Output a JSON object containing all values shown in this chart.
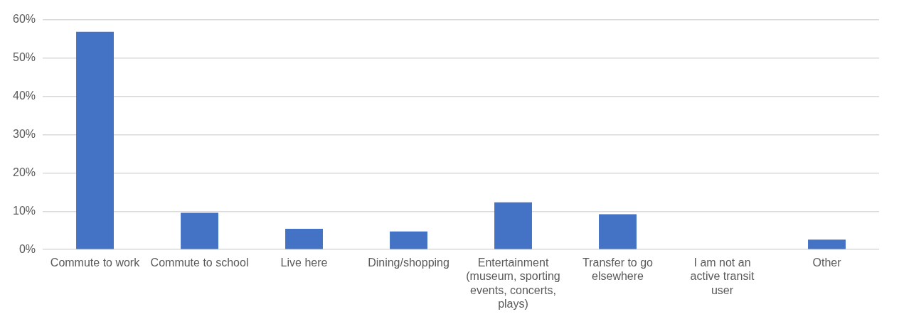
{
  "chart_data": {
    "type": "bar",
    "categories": [
      "Commute to work",
      "Commute to school",
      "Live here",
      "Dining/shopping",
      "Entertainment (museum, sporting events, concerts, plays)",
      "Transfer to go elsewhere",
      "I am not an active transit user",
      "Other"
    ],
    "values": [
      56.8,
      9.6,
      5.4,
      4.7,
      12.3,
      9.2,
      0,
      2.6
    ],
    "color": "#4472c4",
    "ylim": [
      0,
      60
    ],
    "yticks": [
      {
        "value": 0,
        "label": "0%"
      },
      {
        "value": 10,
        "label": "10%"
      },
      {
        "value": 20,
        "label": "20%"
      },
      {
        "value": 30,
        "label": "30%"
      },
      {
        "value": 40,
        "label": "40%"
      },
      {
        "value": 50,
        "label": "50%"
      },
      {
        "value": 60,
        "label": "60%"
      }
    ],
    "grid": "y",
    "legend": false
  }
}
